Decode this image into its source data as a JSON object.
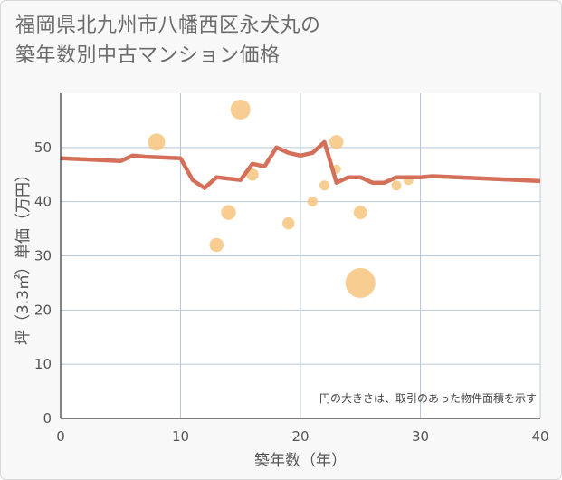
{
  "title_line1": "福岡県北九州市八幡西区永犬丸の",
  "title_line2": "築年数別中古マンション価格",
  "chart_data": {
    "type": "scatter",
    "xlabel": "築年数（年）",
    "ylabel": "坪（3.3㎡）単価（万円）",
    "xlim": [
      0,
      40
    ],
    "ylim": [
      0,
      60
    ],
    "xticks": [
      0,
      10,
      20,
      30,
      40
    ],
    "yticks": [
      0,
      10,
      20,
      30,
      40,
      50
    ],
    "note": "円の大きさは、取引のあった物件面積を示す",
    "bubbles": [
      {
        "x": 8,
        "y": 51,
        "size": 3
      },
      {
        "x": 15,
        "y": 57,
        "size": 4
      },
      {
        "x": 16,
        "y": 45,
        "size": 1.5
      },
      {
        "x": 14,
        "y": 38,
        "size": 2.2
      },
      {
        "x": 13,
        "y": 32,
        "size": 2
      },
      {
        "x": 19,
        "y": 36,
        "size": 1.5
      },
      {
        "x": 21,
        "y": 40,
        "size": 1
      },
      {
        "x": 22,
        "y": 43,
        "size": 1
      },
      {
        "x": 23,
        "y": 51,
        "size": 2
      },
      {
        "x": 23,
        "y": 46,
        "size": 0.8
      },
      {
        "x": 25,
        "y": 38,
        "size": 1.8
      },
      {
        "x": 25,
        "y": 25,
        "size": 9
      },
      {
        "x": 28,
        "y": 43,
        "size": 1
      },
      {
        "x": 29,
        "y": 44,
        "size": 1
      }
    ],
    "trend": {
      "x": [
        0,
        5,
        6,
        7,
        10,
        11,
        12,
        13,
        15,
        16,
        17,
        18,
        19,
        20,
        21,
        22,
        23,
        24,
        25,
        26,
        27,
        28,
        30,
        31,
        35,
        40
      ],
      "y": [
        48,
        47.5,
        48.5,
        48.3,
        48,
        44,
        42.5,
        44.5,
        44,
        47,
        46.5,
        50,
        49,
        48.5,
        49,
        51,
        43.5,
        44.5,
        44.5,
        43.5,
        43.5,
        44.5,
        44.5,
        44.7,
        44.3,
        43.8
      ]
    },
    "colors": {
      "bubble": "#f5c27a",
      "trend": "#d4705a",
      "grid": "#b8c8d8",
      "plot_bg": "#ffffff"
    }
  }
}
